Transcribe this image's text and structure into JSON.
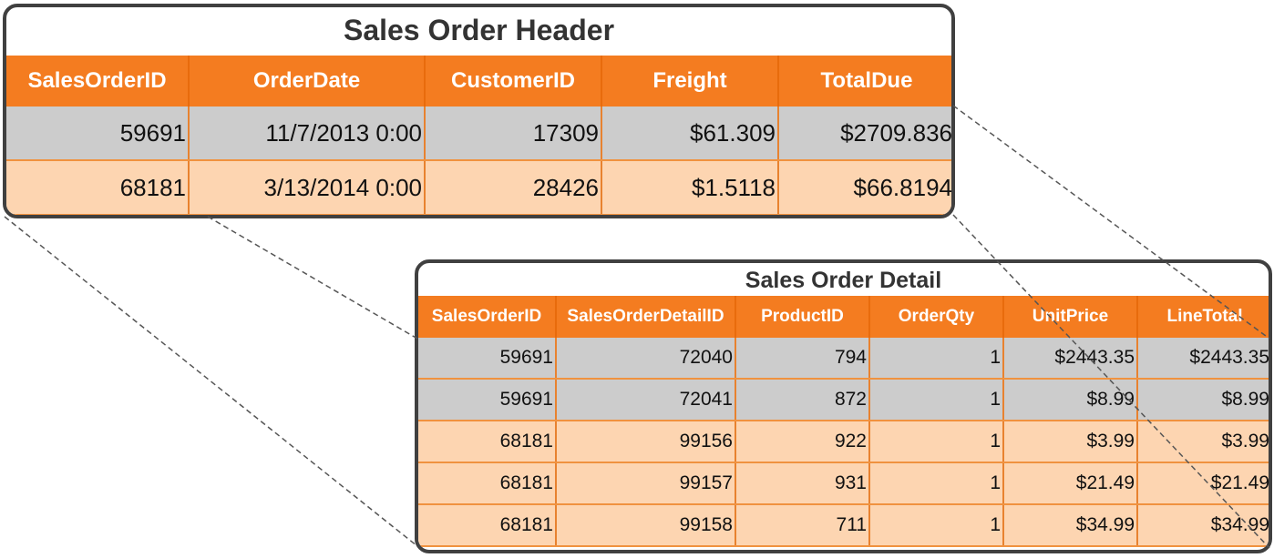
{
  "header": {
    "title": "Sales Order Header",
    "columns": [
      "SalesOrderID",
      "OrderDate",
      "CustomerID",
      "Freight",
      "TotalDue"
    ],
    "rows": [
      [
        "59691",
        "11/7/2013 0:00",
        "17309",
        "$61.309",
        "$2709.836"
      ],
      [
        "68181",
        "3/13/2014 0:00",
        "28426",
        "$1.5118",
        "$66.8194"
      ]
    ]
  },
  "detail": {
    "title": "Sales Order Detail",
    "columns": [
      "SalesOrderID",
      "SalesOrderDetailID",
      "ProductID",
      "OrderQty",
      "UnitPrice",
      "LineTotal"
    ],
    "rows": [
      [
        "59691",
        "72040",
        "794",
        "1",
        "$2443.35",
        "$2443.35"
      ],
      [
        "59691",
        "72041",
        "872",
        "1",
        "$8.99",
        "$8.99"
      ],
      [
        "68181",
        "99156",
        "922",
        "1",
        "$3.99",
        "$3.99"
      ],
      [
        "68181",
        "99157",
        "931",
        "1",
        "$21.49",
        "$21.49"
      ],
      [
        "68181",
        "99158",
        "711",
        "1",
        "$34.99",
        "$34.99"
      ]
    ]
  },
  "colors": {
    "header_orange": "#f47c20",
    "row_gray": "#cccccc",
    "row_peach": "#fdd5b1",
    "border_dark": "#404040"
  }
}
